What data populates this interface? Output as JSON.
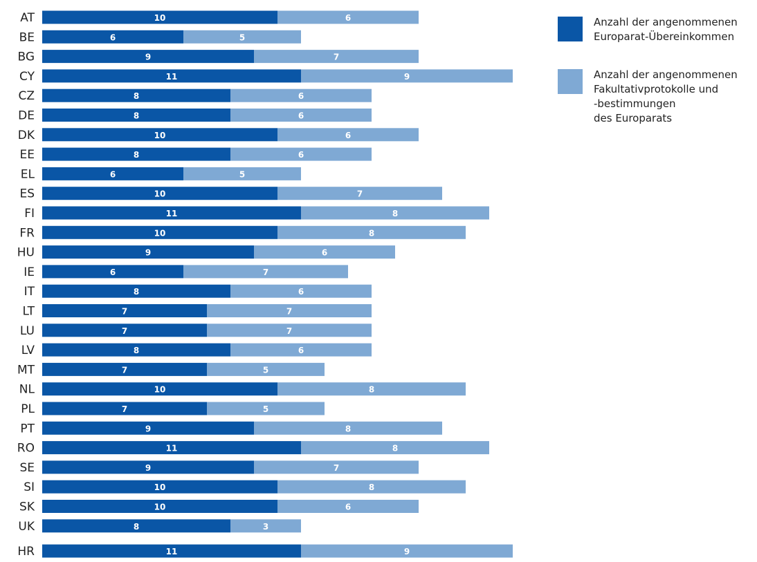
{
  "chart_data": {
    "type": "bar",
    "orientation": "horizontal",
    "stacked": true,
    "categories": [
      "AT",
      "BE",
      "BG",
      "CY",
      "CZ",
      "DE",
      "DK",
      "EE",
      "EL",
      "ES",
      "FI",
      "FR",
      "HU",
      "IE",
      "IT",
      "LT",
      "LU",
      "LV",
      "MT",
      "NL",
      "PL",
      "PT",
      "RO",
      "SE",
      "SI",
      "SK",
      "UK",
      "HR"
    ],
    "series": [
      {
        "name": "Anzahl der angenommenen\nEuroparat-Übereinkommen",
        "color": "#0a56a6",
        "values": [
          10,
          6,
          9,
          11,
          8,
          8,
          10,
          8,
          6,
          10,
          11,
          10,
          9,
          6,
          8,
          7,
          7,
          8,
          7,
          10,
          7,
          9,
          11,
          9,
          10,
          10,
          8,
          11
        ]
      },
      {
        "name": "Anzahl der angenommenen\nFakultativprotokolle und\n-bestimmungen\ndes Europarats",
        "color": "#7fa9d4",
        "values": [
          6,
          5,
          7,
          9,
          6,
          6,
          6,
          6,
          5,
          7,
          8,
          8,
          6,
          7,
          6,
          7,
          7,
          6,
          5,
          8,
          5,
          8,
          8,
          7,
          8,
          6,
          3,
          9
        ]
      }
    ],
    "xlim": [
      0,
      20
    ],
    "grid": false,
    "legend_position": "right"
  }
}
